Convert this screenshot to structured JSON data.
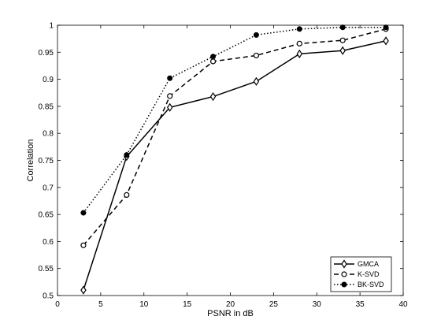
{
  "chart_data": {
    "type": "line",
    "title": "",
    "xlabel": "PSNR in dB",
    "ylabel": "Correlation",
    "xlim": [
      0,
      40
    ],
    "ylim": [
      0.5,
      1
    ],
    "xticks": [
      0,
      5,
      10,
      15,
      20,
      25,
      30,
      35,
      40
    ],
    "yticks": [
      0.5,
      0.55,
      0.6,
      0.65,
      0.7,
      0.75,
      0.8,
      0.85,
      0.9,
      0.95,
      1
    ],
    "xtick_labels": [
      "0",
      "5",
      "10",
      "15",
      "20",
      "25",
      "30",
      "35",
      "40"
    ],
    "ytick_labels": [
      "0.5",
      "0.55",
      "0.6",
      "0.65",
      "0.7",
      "0.75",
      "0.8",
      "0.85",
      "0.9",
      "0.95",
      "1"
    ],
    "grid": false,
    "legend_position": "bottom-right",
    "x": [
      3,
      8,
      13,
      18,
      23,
      28,
      33,
      38
    ],
    "series": [
      {
        "name": "GMCA",
        "values": [
          0.51,
          0.757,
          0.848,
          0.868,
          0.896,
          0.947,
          0.953,
          0.971
        ],
        "line_style": "solid",
        "marker": "diamond-open"
      },
      {
        "name": "K-SVD",
        "values": [
          0.593,
          0.686,
          0.869,
          0.933,
          0.944,
          0.966,
          0.972,
          0.993
        ],
        "line_style": "dashed",
        "marker": "circle-open"
      },
      {
        "name": "BK-SVD",
        "values": [
          0.653,
          0.76,
          0.902,
          0.942,
          0.982,
          0.993,
          0.996,
          0.996
        ],
        "line_style": "dotted",
        "marker": "circle-filled"
      }
    ],
    "colors": {
      "line": "#000000",
      "background": "#ffffff",
      "axes": "#000000"
    }
  }
}
